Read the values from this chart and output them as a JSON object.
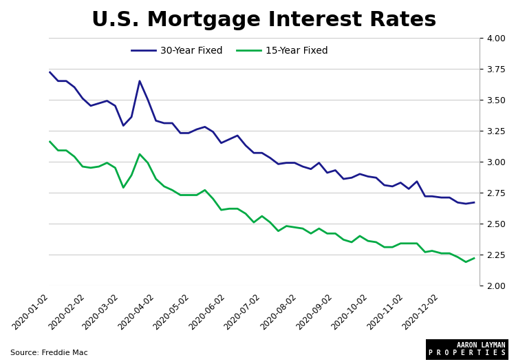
{
  "title": "U.S. Mortgage Interest Rates",
  "title_fontsize": 22,
  "source_text": "Source: Freddie Mac",
  "watermark": "AARON LAYMAN\nP R O P E R T I E S",
  "legend_labels": [
    "30-Year Fixed",
    "15-Year Fixed"
  ],
  "line_colors": [
    "#1a1a8c",
    "#00aa44"
  ],
  "line_width": 2.0,
  "ylim": [
    2.0,
    4.0
  ],
  "yticks": [
    2.0,
    2.25,
    2.5,
    2.75,
    3.0,
    3.25,
    3.5,
    3.75,
    4.0
  ],
  "background_color": "#ffffff",
  "dates_30yr": [
    "2020-01-02",
    "2020-01-09",
    "2020-01-16",
    "2020-01-23",
    "2020-01-30",
    "2020-02-06",
    "2020-02-13",
    "2020-02-20",
    "2020-02-27",
    "2020-03-05",
    "2020-03-12",
    "2020-03-19",
    "2020-03-26",
    "2020-04-02",
    "2020-04-09",
    "2020-04-16",
    "2020-04-23",
    "2020-04-30",
    "2020-05-07",
    "2020-05-14",
    "2020-05-21",
    "2020-05-28",
    "2020-06-04",
    "2020-06-11",
    "2020-06-18",
    "2020-06-25",
    "2020-07-02",
    "2020-07-09",
    "2020-07-16",
    "2020-07-23",
    "2020-07-30",
    "2020-08-06",
    "2020-08-13",
    "2020-08-20",
    "2020-08-27",
    "2020-09-03",
    "2020-09-10",
    "2020-09-17",
    "2020-09-24",
    "2020-10-01",
    "2020-10-08",
    "2020-10-15",
    "2020-10-22",
    "2020-10-29",
    "2020-11-05",
    "2020-11-12",
    "2020-11-19",
    "2020-11-25",
    "2020-12-03",
    "2020-12-10",
    "2020-12-17",
    "2020-12-24",
    "2020-12-31"
  ],
  "rates_30yr": [
    3.72,
    3.65,
    3.65,
    3.6,
    3.51,
    3.45,
    3.47,
    3.49,
    3.45,
    3.29,
    3.36,
    3.65,
    3.5,
    3.33,
    3.31,
    3.31,
    3.23,
    3.23,
    3.26,
    3.28,
    3.24,
    3.15,
    3.18,
    3.21,
    3.13,
    3.07,
    3.07,
    3.03,
    2.98,
    2.99,
    2.99,
    2.96,
    2.94,
    2.99,
    2.91,
    2.93,
    2.86,
    2.87,
    2.9,
    2.88,
    2.87,
    2.81,
    2.8,
    2.83,
    2.78,
    2.84,
    2.72,
    2.72,
    2.71,
    2.71,
    2.67,
    2.66,
    2.67
  ],
  "dates_15yr": [
    "2020-01-02",
    "2020-01-09",
    "2020-01-16",
    "2020-01-23",
    "2020-01-30",
    "2020-02-06",
    "2020-02-13",
    "2020-02-20",
    "2020-02-27",
    "2020-03-05",
    "2020-03-12",
    "2020-03-19",
    "2020-03-26",
    "2020-04-02",
    "2020-04-09",
    "2020-04-16",
    "2020-04-23",
    "2020-04-30",
    "2020-05-07",
    "2020-05-14",
    "2020-05-21",
    "2020-05-28",
    "2020-06-04",
    "2020-06-11",
    "2020-06-18",
    "2020-06-25",
    "2020-07-02",
    "2020-07-09",
    "2020-07-16",
    "2020-07-23",
    "2020-07-30",
    "2020-08-06",
    "2020-08-13",
    "2020-08-20",
    "2020-08-27",
    "2020-09-03",
    "2020-09-10",
    "2020-09-17",
    "2020-09-24",
    "2020-10-01",
    "2020-10-08",
    "2020-10-15",
    "2020-10-22",
    "2020-10-29",
    "2020-11-05",
    "2020-11-12",
    "2020-11-19",
    "2020-11-25",
    "2020-12-03",
    "2020-12-10",
    "2020-12-17",
    "2020-12-24",
    "2020-12-31"
  ],
  "rates_15yr": [
    3.16,
    3.09,
    3.09,
    3.04,
    2.96,
    2.95,
    2.96,
    2.99,
    2.95,
    2.79,
    2.89,
    3.06,
    2.99,
    2.86,
    2.8,
    2.77,
    2.73,
    2.73,
    2.73,
    2.77,
    2.7,
    2.61,
    2.62,
    2.62,
    2.58,
    2.51,
    2.56,
    2.51,
    2.44,
    2.48,
    2.47,
    2.46,
    2.42,
    2.46,
    2.42,
    2.42,
    2.37,
    2.35,
    2.4,
    2.36,
    2.35,
    2.31,
    2.31,
    2.34,
    2.34,
    2.34,
    2.27,
    2.28,
    2.26,
    2.26,
    2.23,
    2.19,
    2.22
  ],
  "xtick_dates": [
    "2020-01-02",
    "2020-02-02",
    "2020-03-02",
    "2020-04-02",
    "2020-05-02",
    "2020-06-02",
    "2020-07-02",
    "2020-08-02",
    "2020-09-02",
    "2020-10-02",
    "2020-11-02",
    "2020-12-02"
  ]
}
